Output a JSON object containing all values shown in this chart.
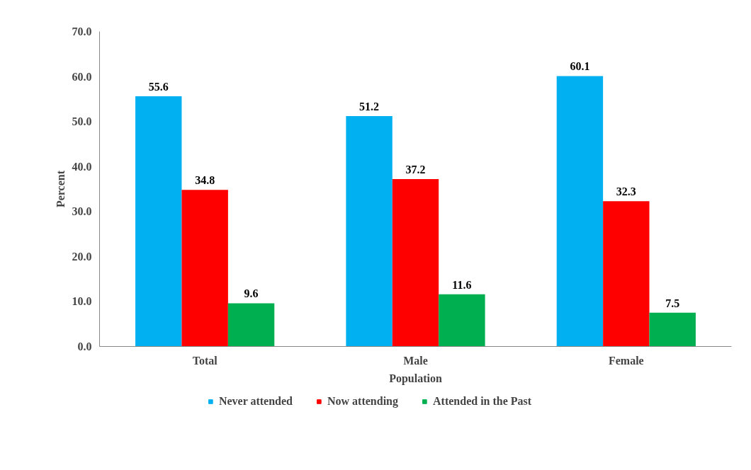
{
  "chart_data": {
    "type": "bar",
    "xlabel": "Population",
    "ylabel": "Percent",
    "categories": [
      "Total",
      "Male",
      "Female"
    ],
    "series": [
      {
        "name": "Never attended",
        "color": "#00b0f0",
        "values": [
          55.6,
          51.2,
          60.1
        ]
      },
      {
        "name": "Now attending",
        "color": "#ff0000",
        "values": [
          34.8,
          37.2,
          32.3
        ]
      },
      {
        "name": "Attended in the Past",
        "color": "#00b050",
        "values": [
          9.6,
          11.6,
          7.5
        ]
      }
    ],
    "ylim": [
      0,
      70
    ],
    "yticks": [
      {
        "value": 0,
        "label": "0.0"
      },
      {
        "value": 10,
        "label": "10.0"
      },
      {
        "value": 20,
        "label": "20.0"
      },
      {
        "value": 30,
        "label": "30.0"
      },
      {
        "value": 40,
        "label": "40.0"
      },
      {
        "value": 50,
        "label": "50.0"
      },
      {
        "value": 60,
        "label": "60.0"
      },
      {
        "value": 70,
        "label": "70.0"
      }
    ],
    "data_labels": true,
    "legend": "bottom",
    "grid": false
  }
}
